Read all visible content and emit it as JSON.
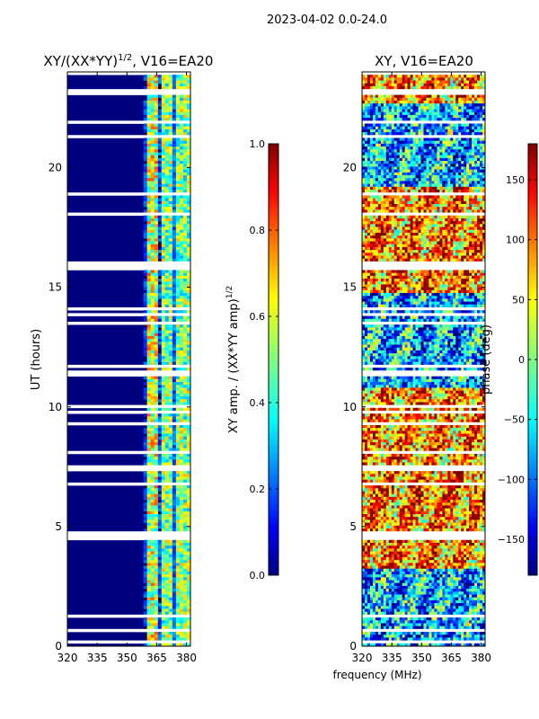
{
  "suptitle": "2023-04-02 0.0-24.0",
  "chart_data": [
    {
      "type": "heatmap",
      "title_main": "XY/(XX*YY)",
      "title_exp": "1/2",
      "title_rest": ", V16=EA20",
      "xlabel": "",
      "ylabel": "UT (hours)",
      "x_ticks": [
        "320",
        "335",
        "350",
        "365",
        "380"
      ],
      "x_tick_values": [
        320,
        335,
        350,
        365,
        380
      ],
      "xlim": [
        320,
        382
      ],
      "y_ticks": [
        "0",
        "5",
        "10",
        "15",
        "20"
      ],
      "y_tick_values": [
        0,
        5,
        10,
        15,
        20
      ],
      "ylim": [
        0,
        24
      ],
      "colorbar": {
        "label_main": "XY amp. / (XX*YY amp)",
        "label_exp": "1/2",
        "ticks": [
          "0.0",
          "0.2",
          "0.4",
          "0.6",
          "0.8",
          "1.0"
        ],
        "tick_values": [
          0,
          0.2,
          0.4,
          0.6,
          0.8,
          1.0
        ],
        "range": [
          0,
          1
        ],
        "colormap": "jet"
      }
    },
    {
      "type": "heatmap",
      "title": "XY, V16=EA20",
      "xlabel": "frequency (MHz)",
      "ylabel": "",
      "x_ticks": [
        "320",
        "335",
        "350",
        "365",
        "380"
      ],
      "x_tick_values": [
        320,
        335,
        350,
        365,
        380
      ],
      "xlim": [
        320,
        382
      ],
      "y_ticks": [
        "0",
        "5",
        "10",
        "15",
        "20"
      ],
      "y_tick_values": [
        0,
        5,
        10,
        15,
        20
      ],
      "ylim": [
        0,
        24
      ],
      "colorbar": {
        "label": "phase (deg)",
        "ticks": [
          "150",
          "100",
          "50",
          "0",
          "−50",
          "−100",
          "−150"
        ],
        "tick_values": [
          150,
          100,
          50,
          0,
          -50,
          -100,
          -150
        ],
        "range": [
          -180,
          180
        ],
        "colormap": "jet"
      }
    }
  ],
  "colors": {
    "jet": [
      "#00007f",
      "#0000ff",
      "#007fff",
      "#00ffff",
      "#7fff7f",
      "#ffff00",
      "#ff7f00",
      "#ff0000",
      "#7f0000"
    ]
  }
}
